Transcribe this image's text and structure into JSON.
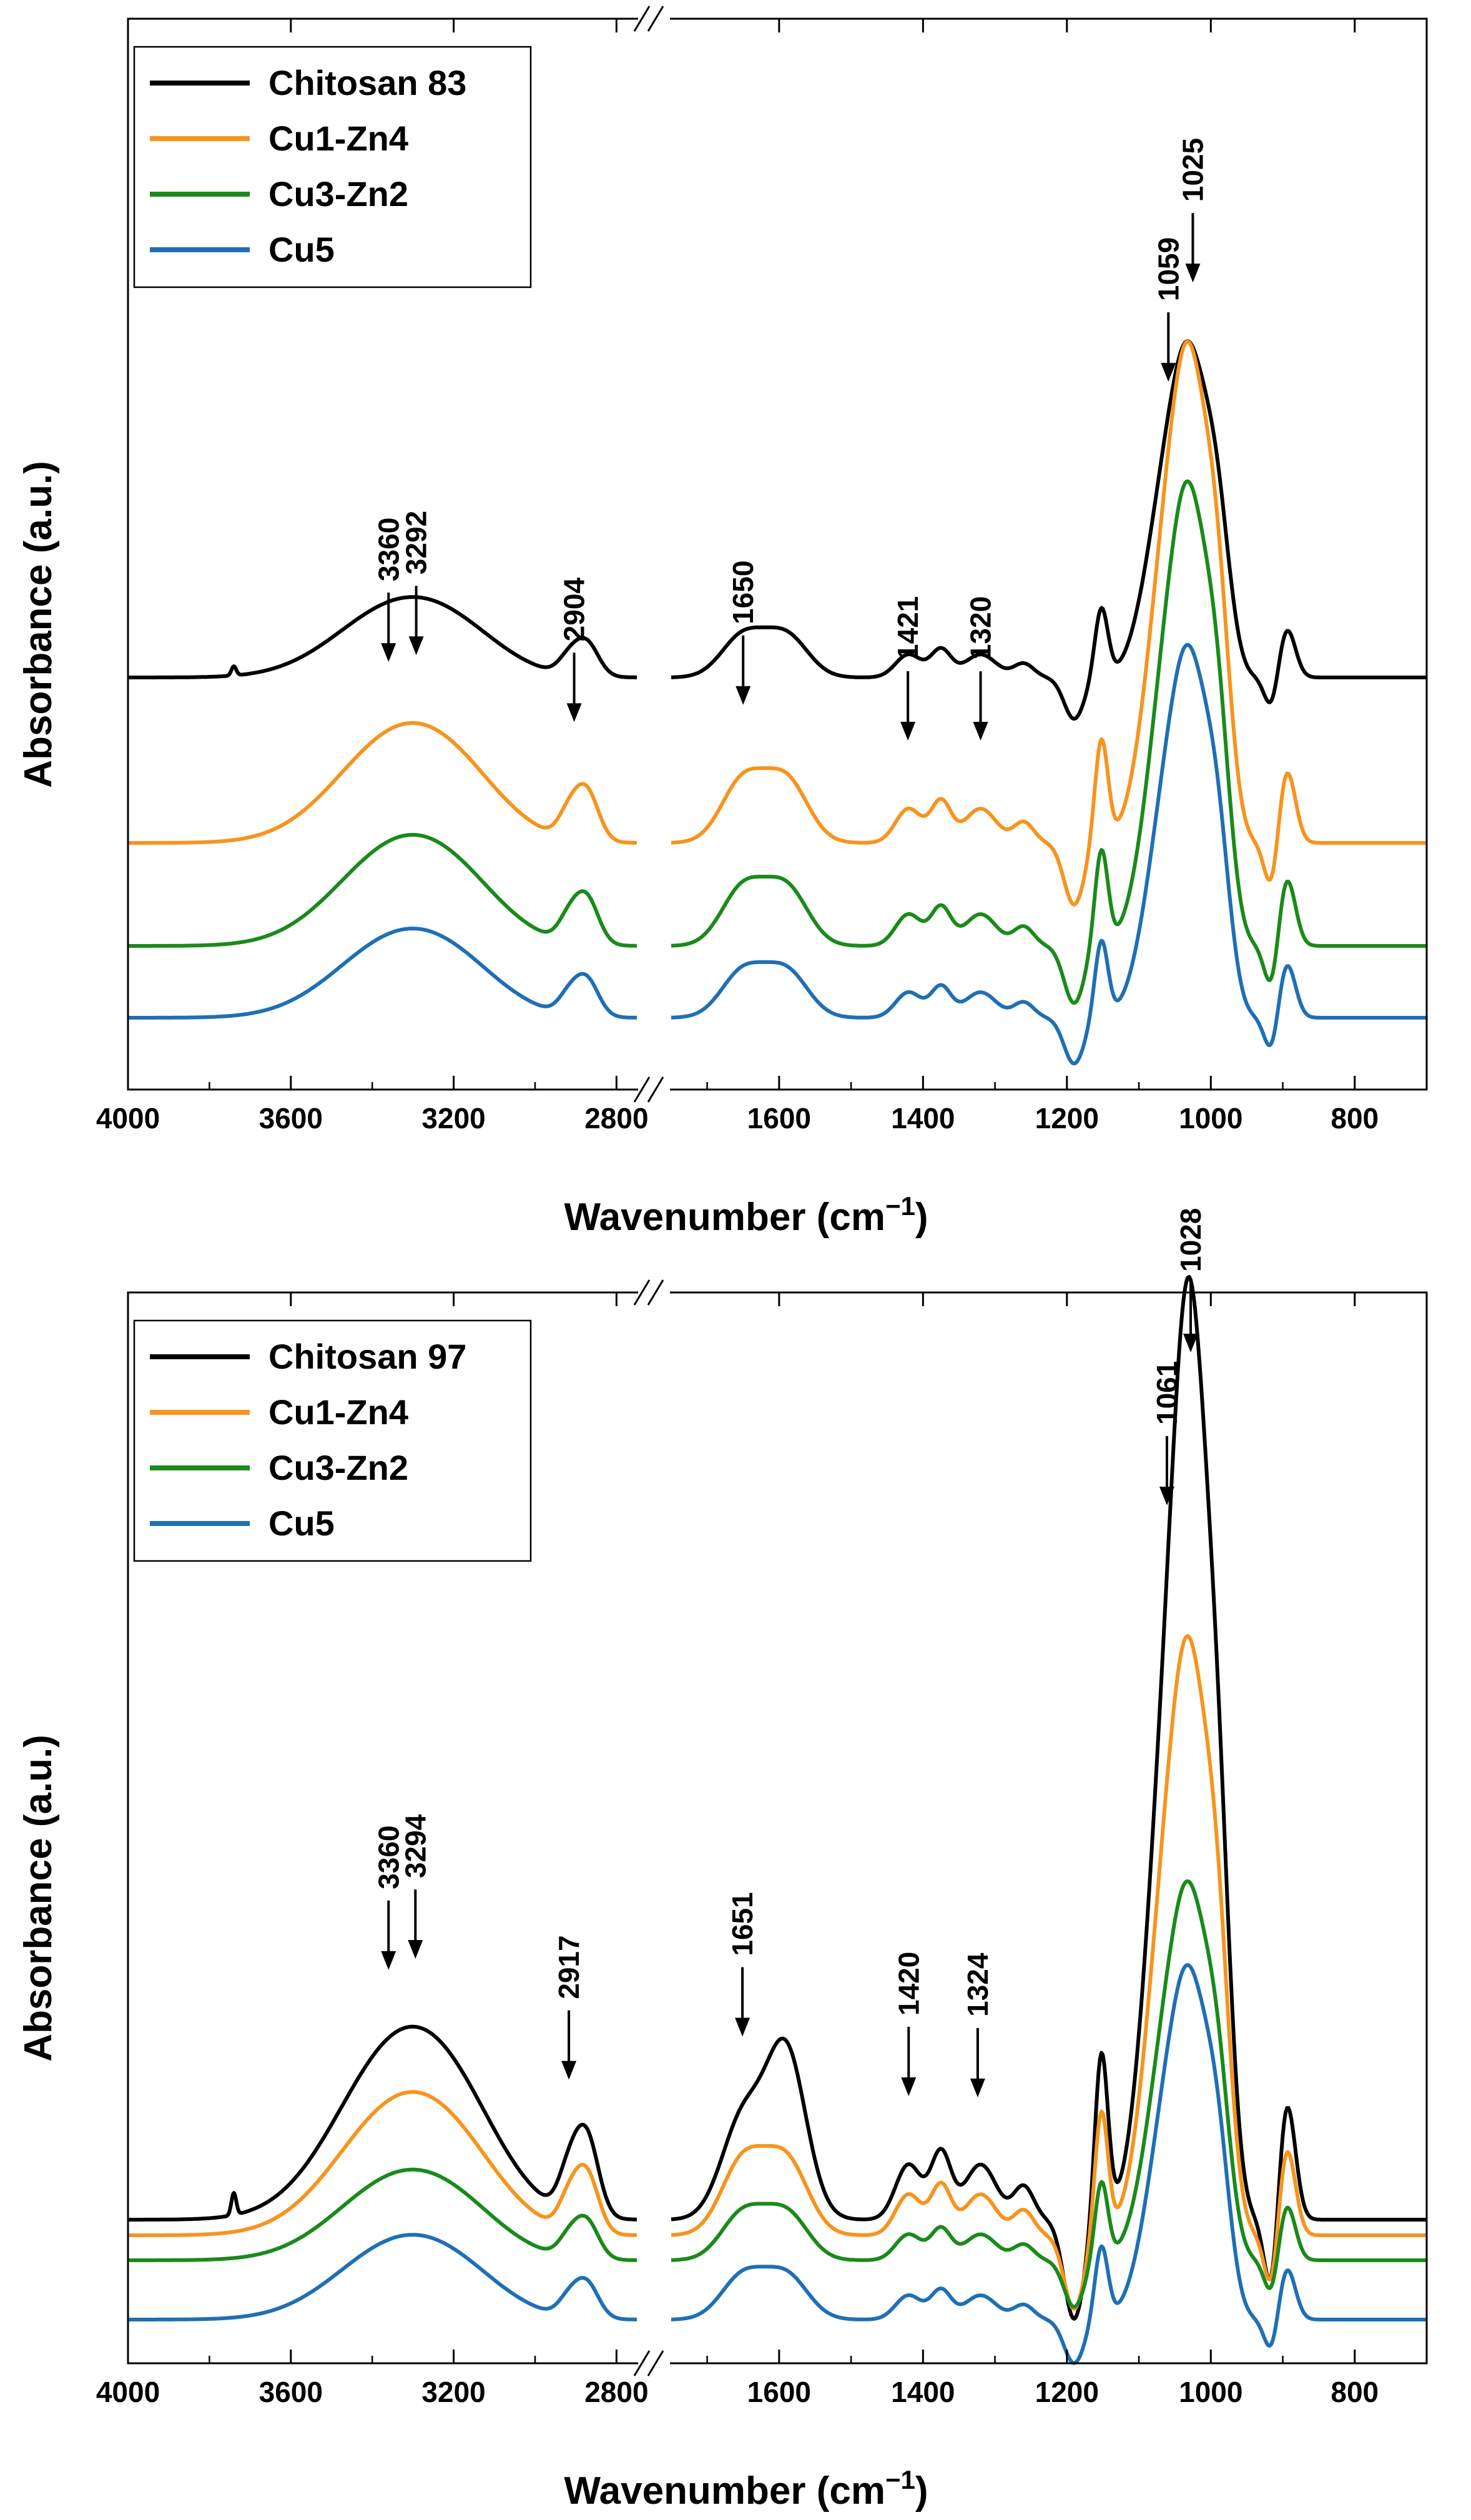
{
  "figure": {
    "x_axis_label": "Wavenumber (cm",
    "x_axis_label_sup": "−1",
    "x_axis_label_close": ")",
    "y_axis_label": "Absorbance (a.u.)"
  },
  "colors": {
    "Chitosan": "#000000",
    "Cu1-Zn4": "#F7941D",
    "Cu3-Zn2": "#1A8A1A",
    "Cu5": "#1F6FB4"
  },
  "chart_data": [
    {
      "type": "line",
      "panel": "top",
      "xlabel": "Wavenumber (cm−1)",
      "ylabel": "Absorbance (a.u.)",
      "x_break": [
        2750,
        1750
      ],
      "xlim_left": [
        4000,
        2750
      ],
      "xlim_right": [
        1750,
        700
      ],
      "xticks_left": [
        "4000",
        "3600",
        "3200",
        "2800"
      ],
      "xticks_right": [
        "1600",
        "1400",
        "1200",
        "1000",
        "800"
      ],
      "legend_position": "top-left",
      "legend": [
        "Chitosan 83",
        "Cu1-Zn4",
        "Cu3-Zn2",
        "Cu5"
      ],
      "annotations": [
        {
          "label": "3360",
          "x": 3360
        },
        {
          "label": "3292",
          "x": 3292
        },
        {
          "label": "2904",
          "x": 2904
        },
        {
          "label": "1650",
          "x": 1650
        },
        {
          "label": "1421",
          "x": 1421
        },
        {
          "label": "1320",
          "x": 1320
        },
        {
          "label": "1059",
          "x": 1059
        },
        {
          "label": "1025",
          "x": 1025
        }
      ],
      "series": [
        {
          "name": "Chitosan 83",
          "color_key": "Chitosan",
          "baseline": 0.55,
          "scale": 0.55
        },
        {
          "name": "Cu1-Zn4",
          "color_key": "Cu1-Zn4",
          "baseline": 0.29,
          "scale": 0.82
        },
        {
          "name": "Cu3-Zn2",
          "color_key": "Cu3-Zn2",
          "baseline": 0.12,
          "scale": 0.76
        },
        {
          "name": "Cu5",
          "color_key": "Cu5",
          "baseline": 0.0,
          "scale": 0.61
        }
      ]
    },
    {
      "type": "line",
      "panel": "bottom",
      "xlabel": "Wavenumber (cm−1)",
      "ylabel": "Absorbance (a.u.)",
      "x_break": [
        2750,
        1750
      ],
      "xlim_left": [
        4000,
        2750
      ],
      "xlim_right": [
        1750,
        700
      ],
      "xticks_left": [
        "4000",
        "3600",
        "3200",
        "2800"
      ],
      "xticks_right": [
        "1600",
        "1400",
        "1200",
        "1000",
        "800"
      ],
      "legend_position": "top-left",
      "legend": [
        "Chitosan 97",
        "Cu1-Zn4",
        "Cu3-Zn2",
        "Cu5"
      ],
      "annotations": [
        {
          "label": "3360",
          "x": 3360
        },
        {
          "label": "3294",
          "x": 3294
        },
        {
          "label": "2917",
          "x": 2917
        },
        {
          "label": "1651",
          "x": 1651
        },
        {
          "label": "1420",
          "x": 1420
        },
        {
          "label": "1324",
          "x": 1324
        },
        {
          "label": "1061",
          "x": 1061
        },
        {
          "label": "1028",
          "x": 1028
        }
      ],
      "series": [
        {
          "name": "Chitosan 97",
          "color_key": "Chitosan",
          "baseline": 0.2,
          "scale": 1.32
        },
        {
          "name": "Cu1-Zn4",
          "color_key": "Cu1-Zn4",
          "baseline": 0.15,
          "scale": 0.98
        },
        {
          "name": "Cu3-Zn2",
          "color_key": "Cu3-Zn2",
          "baseline": 0.11,
          "scale": 0.62
        },
        {
          "name": "Cu5",
          "color_key": "Cu5",
          "baseline": 0.0,
          "scale": 0.58
        }
      ]
    }
  ]
}
